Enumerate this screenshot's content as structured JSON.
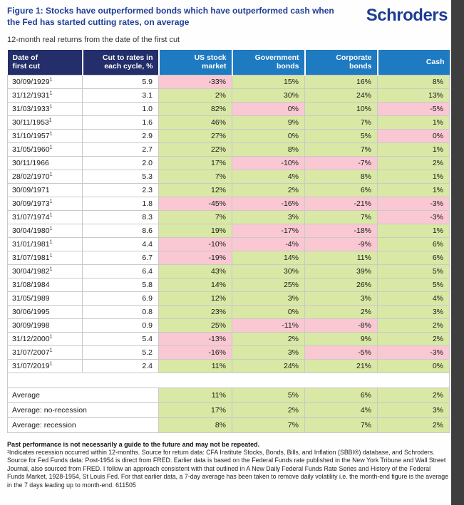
{
  "header": {
    "title": "Figure 1: Stocks have outperformed bonds which have outperformed cash when the Fed has started cutting rates, on average",
    "subtitle": "12-month real returns from the date of the first cut",
    "logo": "Schroders"
  },
  "chart_data": {
    "type": "table",
    "columns": [
      [
        "Date of",
        "first cut"
      ],
      [
        "Cut to rates in",
        "each cycle, %"
      ],
      [
        "US stock",
        "market"
      ],
      [
        "Government",
        "bonds"
      ],
      [
        "Corporate",
        "bonds"
      ],
      [
        "Cash"
      ]
    ],
    "recession_marker": "1",
    "rows": [
      {
        "date": "30/09/1929",
        "recession": true,
        "cut": "5.9",
        "values": [
          [
            "-33%",
            "p"
          ],
          [
            "15%",
            "g"
          ],
          [
            "16%",
            "g"
          ],
          [
            "8%",
            "g"
          ]
        ]
      },
      {
        "date": "31/12/1931",
        "recession": true,
        "cut": "3.1",
        "values": [
          [
            "2%",
            "g"
          ],
          [
            "30%",
            "g"
          ],
          [
            "24%",
            "g"
          ],
          [
            "13%",
            "g"
          ]
        ]
      },
      {
        "date": "31/03/1933",
        "recession": true,
        "cut": "1.0",
        "values": [
          [
            "82%",
            "g"
          ],
          [
            "0%",
            "p"
          ],
          [
            "10%",
            "g"
          ],
          [
            "-5%",
            "p"
          ]
        ]
      },
      {
        "date": "30/11/1953",
        "recession": true,
        "cut": "1.6",
        "values": [
          [
            "46%",
            "g"
          ],
          [
            "9%",
            "g"
          ],
          [
            "7%",
            "g"
          ],
          [
            "1%",
            "g"
          ]
        ]
      },
      {
        "date": "31/10/1957",
        "recession": true,
        "cut": "2.9",
        "values": [
          [
            "27%",
            "g"
          ],
          [
            "0%",
            "g"
          ],
          [
            "5%",
            "g"
          ],
          [
            "0%",
            "p"
          ]
        ]
      },
      {
        "date": "31/05/1960",
        "recession": true,
        "cut": "2.7",
        "values": [
          [
            "22%",
            "g"
          ],
          [
            "8%",
            "g"
          ],
          [
            "7%",
            "g"
          ],
          [
            "1%",
            "g"
          ]
        ]
      },
      {
        "date": "30/11/1966",
        "recession": false,
        "cut": "2.0",
        "values": [
          [
            "17%",
            "g"
          ],
          [
            "-10%",
            "p"
          ],
          [
            "-7%",
            "p"
          ],
          [
            "2%",
            "g"
          ]
        ]
      },
      {
        "date": "28/02/1970",
        "recession": true,
        "cut": "5.3",
        "values": [
          [
            "7%",
            "g"
          ],
          [
            "4%",
            "g"
          ],
          [
            "8%",
            "g"
          ],
          [
            "1%",
            "g"
          ]
        ]
      },
      {
        "date": "30/09/1971",
        "recession": false,
        "cut": "2.3",
        "values": [
          [
            "12%",
            "g"
          ],
          [
            "2%",
            "g"
          ],
          [
            "6%",
            "g"
          ],
          [
            "1%",
            "g"
          ]
        ]
      },
      {
        "date": "30/09/1973",
        "recession": true,
        "cut": "1.8",
        "values": [
          [
            "-45%",
            "p"
          ],
          [
            "-16%",
            "p"
          ],
          [
            "-21%",
            "p"
          ],
          [
            "-3%",
            "p"
          ]
        ]
      },
      {
        "date": "31/07/1974",
        "recession": true,
        "cut": "8.3",
        "values": [
          [
            "7%",
            "g"
          ],
          [
            "3%",
            "g"
          ],
          [
            "7%",
            "g"
          ],
          [
            "-3%",
            "p"
          ]
        ]
      },
      {
        "date": "30/04/1980",
        "recession": true,
        "cut": "8.6",
        "values": [
          [
            "19%",
            "g"
          ],
          [
            "-17%",
            "p"
          ],
          [
            "-18%",
            "p"
          ],
          [
            "1%",
            "g"
          ]
        ]
      },
      {
        "date": "31/01/1981",
        "recession": true,
        "cut": "4.4",
        "values": [
          [
            "-10%",
            "p"
          ],
          [
            "-4%",
            "p"
          ],
          [
            "-9%",
            "p"
          ],
          [
            "6%",
            "g"
          ]
        ]
      },
      {
        "date": "31/07/1981",
        "recession": true,
        "cut": "6.7",
        "values": [
          [
            "-19%",
            "p"
          ],
          [
            "14%",
            "g"
          ],
          [
            "11%",
            "g"
          ],
          [
            "6%",
            "g"
          ]
        ]
      },
      {
        "date": "30/04/1982",
        "recession": true,
        "cut": "6.4",
        "values": [
          [
            "43%",
            "g"
          ],
          [
            "30%",
            "g"
          ],
          [
            "39%",
            "g"
          ],
          [
            "5%",
            "g"
          ]
        ]
      },
      {
        "date": "31/08/1984",
        "recession": false,
        "cut": "5.8",
        "values": [
          [
            "14%",
            "g"
          ],
          [
            "25%",
            "g"
          ],
          [
            "26%",
            "g"
          ],
          [
            "5%",
            "g"
          ]
        ]
      },
      {
        "date": "31/05/1989",
        "recession": false,
        "cut": "6.9",
        "values": [
          [
            "12%",
            "g"
          ],
          [
            "3%",
            "g"
          ],
          [
            "3%",
            "g"
          ],
          [
            "4%",
            "g"
          ]
        ]
      },
      {
        "date": "30/06/1995",
        "recession": false,
        "cut": "0.8",
        "values": [
          [
            "23%",
            "g"
          ],
          [
            "0%",
            "g"
          ],
          [
            "2%",
            "g"
          ],
          [
            "3%",
            "g"
          ]
        ]
      },
      {
        "date": "30/09/1998",
        "recession": false,
        "cut": "0.9",
        "values": [
          [
            "25%",
            "g"
          ],
          [
            "-11%",
            "p"
          ],
          [
            "-8%",
            "p"
          ],
          [
            "2%",
            "g"
          ]
        ]
      },
      {
        "date": "31/12/2000",
        "recession": true,
        "cut": "5.4",
        "values": [
          [
            "-13%",
            "p"
          ],
          [
            "2%",
            "g"
          ],
          [
            "9%",
            "g"
          ],
          [
            "2%",
            "g"
          ]
        ]
      },
      {
        "date": "31/07/2007",
        "recession": true,
        "cut": "5.2",
        "values": [
          [
            "-16%",
            "p"
          ],
          [
            "3%",
            "g"
          ],
          [
            "-5%",
            "p"
          ],
          [
            "-3%",
            "p"
          ]
        ]
      },
      {
        "date": "31/07/2019",
        "recession": true,
        "cut": "2.4",
        "values": [
          [
            "11%",
            "g"
          ],
          [
            "24%",
            "g"
          ],
          [
            "21%",
            "g"
          ],
          [
            "0%",
            "g"
          ]
        ]
      }
    ],
    "averages": [
      {
        "label": "Average",
        "values": [
          "11%",
          "5%",
          "6%",
          "2%"
        ]
      },
      {
        "label": "Average: no-recession",
        "values": [
          "17%",
          "2%",
          "4%",
          "3%"
        ]
      },
      {
        "label": "Average: recession",
        "values": [
          "8%",
          "7%",
          "7%",
          "2%"
        ]
      }
    ]
  },
  "footnotes": {
    "warning": "Past performance is not necessarily a guide to the future and may not be repeated.",
    "source": "¹Indicates recession occurred within 12-months. Source for return data: CFA Institute Stocks, Bonds, Bills, and Inflation (SBBI®) database, and Schroders. Source for Fed Funds data: Post-1954 is direct from FRED. Earlier data is based on the Federal Funds rate published in the New York Tribune and Wall Street Journal, also sourced from FRED. I follow an approach consistent with that outlined in A New Daily Federal Funds Rate Series and History of the Federal Funds Market, 1928-1954, St Louis Fed. For that earlier data, a 7-day average has been taken to remove daily volatility i.e. the month-end figure is the average in the 7 days leading up to month-end. 611505"
  },
  "colors": {
    "navy_header": "#232e6a",
    "blue_header": "#1e7ac1",
    "positive_green": "#d9e8a5",
    "negative_pink": "#f9c8d2",
    "brand_blue": "#1e3d96",
    "window_edge": "#3e3e3e"
  }
}
